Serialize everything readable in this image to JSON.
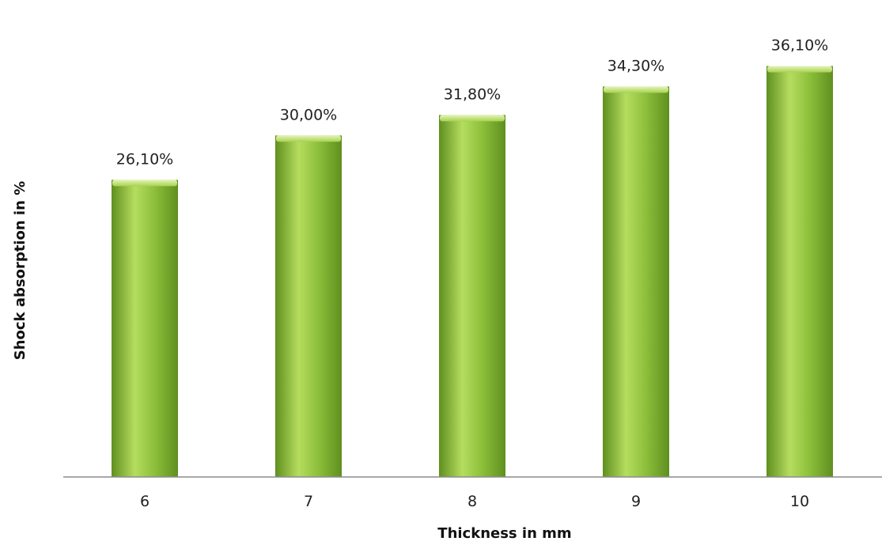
{
  "chart_data": {
    "type": "bar",
    "categories": [
      "6",
      "7",
      "8",
      "9",
      "10"
    ],
    "values": [
      26.1,
      30.0,
      31.8,
      34.3,
      36.1
    ],
    "data_labels": [
      "26,10%",
      "30,00%",
      "31,80%",
      "34,30%",
      "36,10%"
    ],
    "title": "",
    "xlabel": "Thickness in mm",
    "ylabel": "Shock absorption in %",
    "ylim": [
      0,
      41
    ],
    "grid": false,
    "legend": "none",
    "bar_color": "#8cbf3a",
    "bar_highlight": "#b5dd5f",
    "bar_shadow": "#5f8f1f"
  }
}
